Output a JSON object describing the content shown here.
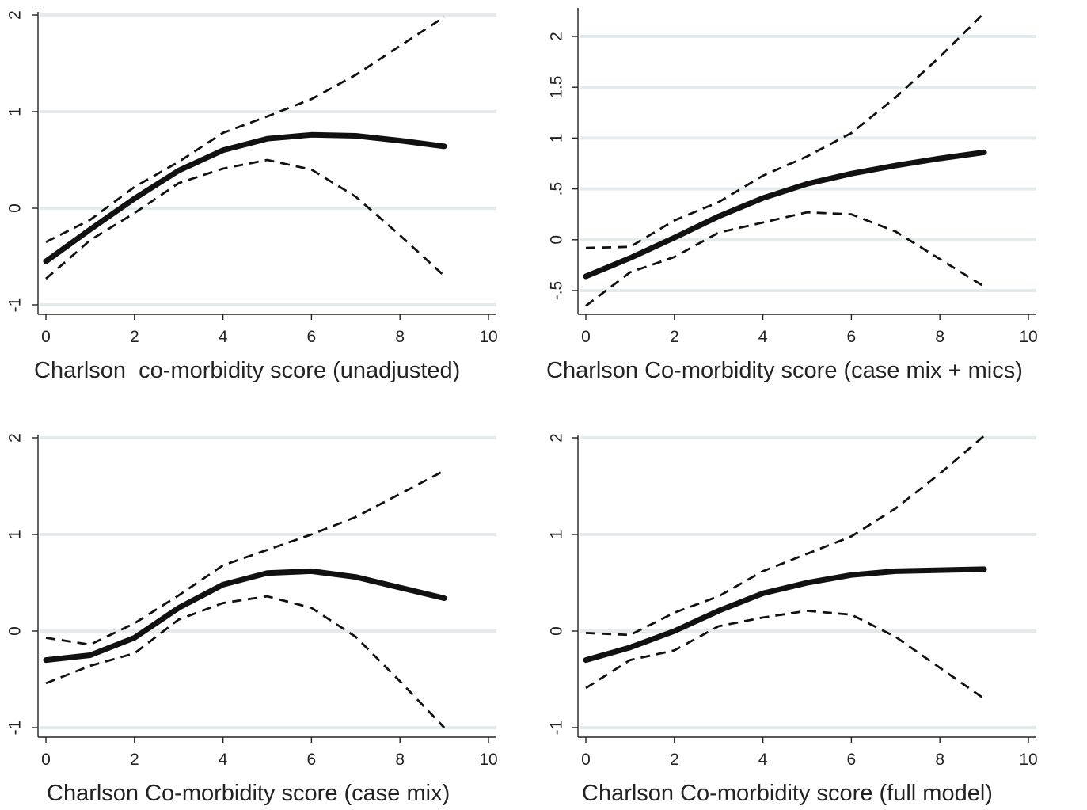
{
  "chart_data": [
    {
      "type": "line",
      "xlabel": "Charlson  co-morbidity score (unadjusted)",
      "ylabel": "",
      "xlim": [
        0,
        10
      ],
      "ylim": [
        -1,
        2
      ],
      "x_ticks": [
        "0",
        "2",
        "4",
        "6",
        "8",
        "10"
      ],
      "y_ticks": [
        "-1",
        "0",
        "1",
        "2"
      ],
      "y_tick_values": [
        -1,
        0,
        1,
        2
      ],
      "x": [
        0,
        1,
        2,
        3,
        4,
        5,
        6,
        7,
        8,
        9
      ],
      "series": [
        {
          "role": "fit",
          "values": [
            -0.55,
            -0.22,
            0.1,
            0.39,
            0.6,
            0.72,
            0.76,
            0.75,
            0.7,
            0.64
          ]
        },
        {
          "role": "upper",
          "values": [
            -0.35,
            -0.12,
            0.22,
            0.48,
            0.78,
            0.95,
            1.13,
            1.38,
            1.68,
            1.98
          ]
        },
        {
          "role": "lower",
          "values": [
            -0.73,
            -0.33,
            -0.05,
            0.26,
            0.41,
            0.5,
            0.4,
            0.12,
            -0.28,
            -0.7
          ]
        }
      ]
    },
    {
      "type": "line",
      "xlabel": "Charlson Co-morbidity score (case mix + mics)",
      "ylabel": "",
      "xlim": [
        0,
        10
      ],
      "ylim": [
        -0.5,
        2
      ],
      "x_ticks": [
        "0",
        "2",
        "4",
        "6",
        "8",
        "10"
      ],
      "y_ticks": [
        "-.5",
        "0",
        ".5",
        "1",
        "1.5",
        "2"
      ],
      "y_tick_values": [
        -0.5,
        0,
        0.5,
        1,
        1.5,
        2
      ],
      "x": [
        0,
        1,
        2,
        3,
        4,
        5,
        6,
        7,
        8,
        9
      ],
      "series": [
        {
          "role": "fit",
          "values": [
            -0.36,
            -0.18,
            0.02,
            0.23,
            0.41,
            0.55,
            0.65,
            0.73,
            0.8,
            0.86
          ]
        },
        {
          "role": "upper",
          "values": [
            -0.08,
            -0.07,
            0.19,
            0.37,
            0.63,
            0.82,
            1.05,
            1.4,
            1.8,
            2.23
          ]
        },
        {
          "role": "lower",
          "values": [
            -0.65,
            -0.32,
            -0.17,
            0.07,
            0.17,
            0.27,
            0.25,
            0.08,
            -0.19,
            -0.46
          ]
        }
      ]
    },
    {
      "type": "line",
      "xlabel": "Charlson Co-morbidity score (case mix)",
      "ylabel": "",
      "xlim": [
        0,
        10
      ],
      "ylim": [
        -1,
        2
      ],
      "x_ticks": [
        "0",
        "2",
        "4",
        "6",
        "8",
        "10"
      ],
      "y_ticks": [
        "-1",
        "0",
        "1",
        "2"
      ],
      "y_tick_values": [
        -1,
        0,
        1,
        2
      ],
      "x": [
        0,
        1,
        2,
        3,
        4,
        5,
        6,
        7,
        8,
        9
      ],
      "series": [
        {
          "role": "fit",
          "values": [
            -0.3,
            -0.25,
            -0.07,
            0.24,
            0.48,
            0.6,
            0.62,
            0.56,
            0.45,
            0.34
          ]
        },
        {
          "role": "upper",
          "values": [
            -0.07,
            -0.14,
            0.08,
            0.37,
            0.68,
            0.84,
            1.0,
            1.18,
            1.42,
            1.66
          ]
        },
        {
          "role": "lower",
          "values": [
            -0.54,
            -0.36,
            -0.23,
            0.12,
            0.29,
            0.36,
            0.24,
            -0.06,
            -0.52,
            -1.0
          ]
        }
      ]
    },
    {
      "type": "line",
      "xlabel": "Charlson Co-morbidity score (full model)",
      "ylabel": "",
      "xlim": [
        0,
        10
      ],
      "ylim": [
        -1,
        2
      ],
      "x_ticks": [
        "0",
        "2",
        "4",
        "6",
        "8",
        "10"
      ],
      "y_ticks": [
        "-1",
        "0",
        "1",
        "2"
      ],
      "y_tick_values": [
        -1,
        0,
        1,
        2
      ],
      "x": [
        0,
        1,
        2,
        3,
        4,
        5,
        6,
        7,
        8,
        9
      ],
      "series": [
        {
          "role": "fit",
          "values": [
            -0.3,
            -0.17,
            0.0,
            0.21,
            0.39,
            0.5,
            0.58,
            0.62,
            0.63,
            0.64
          ]
        },
        {
          "role": "upper",
          "values": [
            -0.02,
            -0.04,
            0.19,
            0.36,
            0.62,
            0.8,
            0.98,
            1.27,
            1.63,
            2.02
          ]
        },
        {
          "role": "lower",
          "values": [
            -0.59,
            -0.3,
            -0.2,
            0.05,
            0.14,
            0.21,
            0.17,
            -0.06,
            -0.38,
            -0.7
          ]
        }
      ]
    }
  ]
}
